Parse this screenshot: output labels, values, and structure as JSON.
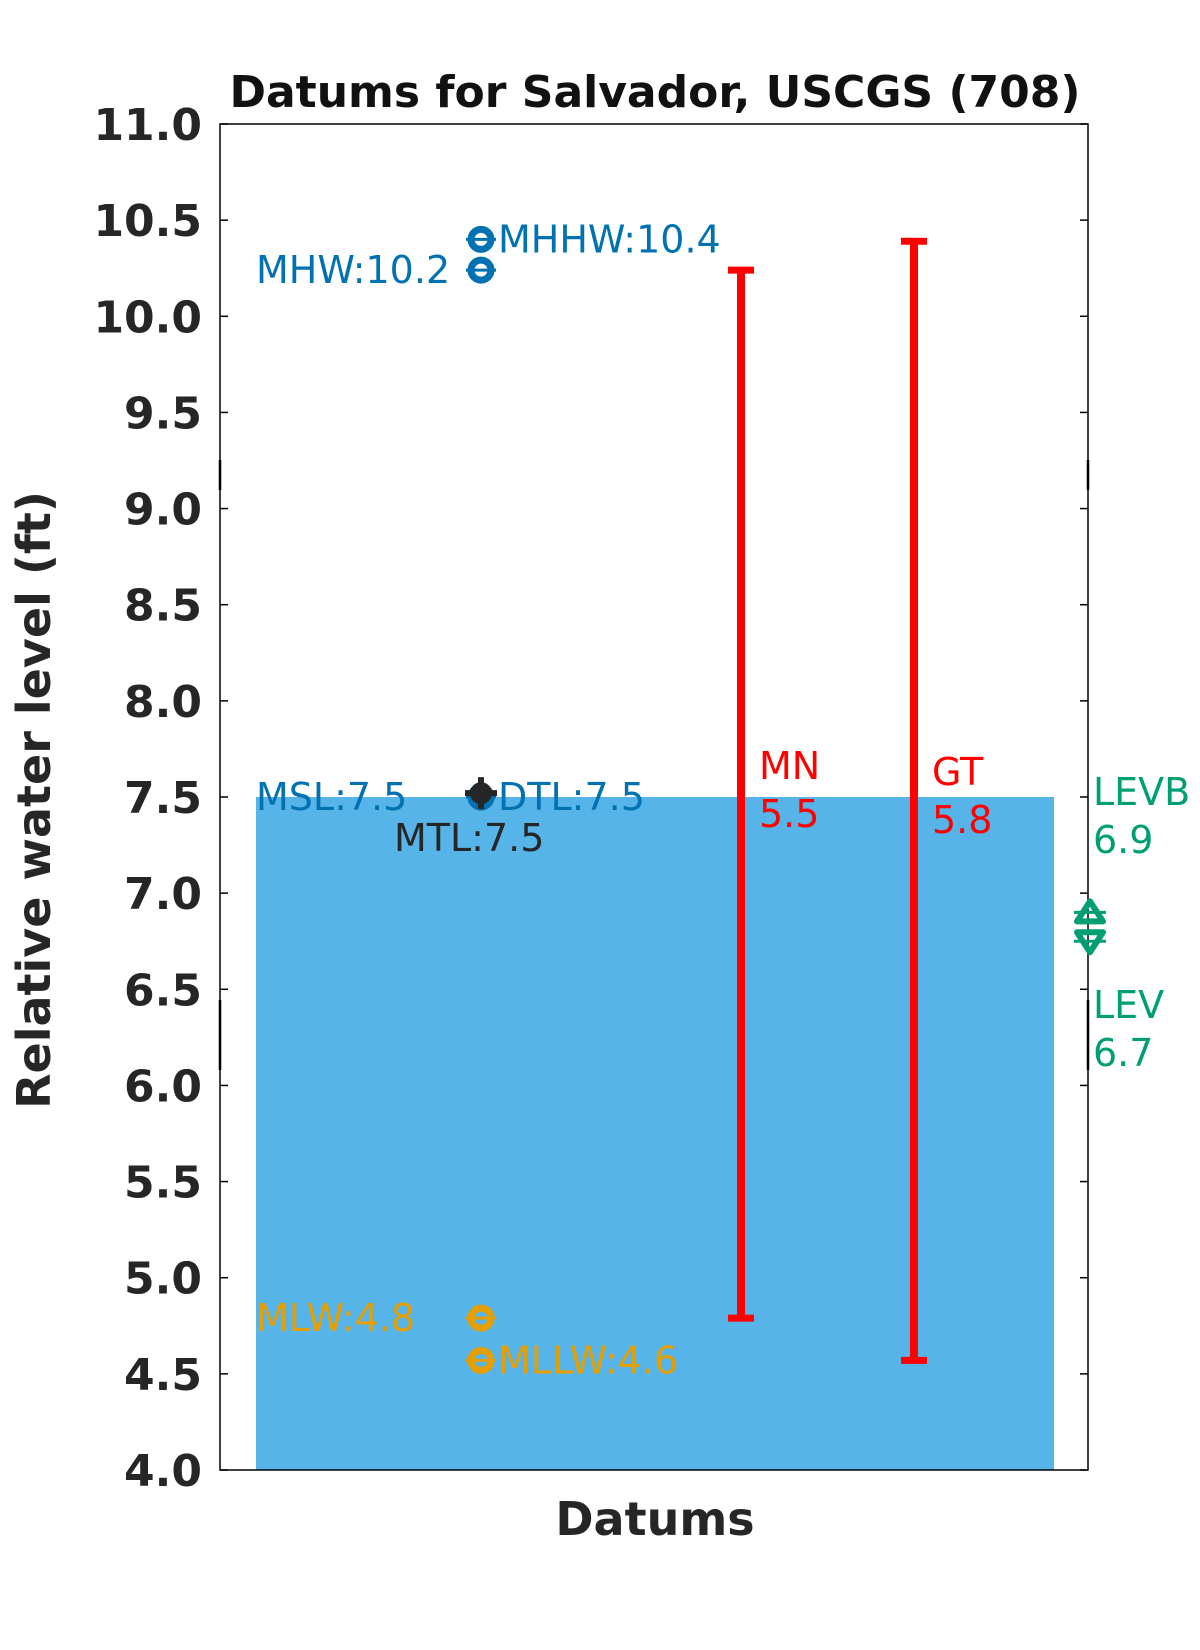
{
  "chart_data": {
    "type": "bar",
    "title": "Datums for Salvador, USCGS (708)",
    "xlabel": "Datums",
    "ylabel": "Relative water level (ft)",
    "ylim": [
      4.0,
      11.0
    ],
    "yticks": [
      "4.0",
      "4.5",
      "5.0",
      "5.5",
      "6.0",
      "6.5",
      "7.0",
      "7.5",
      "8.0",
      "8.5",
      "9.0",
      "9.5",
      "10.0",
      "10.5",
      "11.0"
    ],
    "grid": false,
    "bar": {
      "value": 7.5,
      "color": "#56B4E9"
    },
    "datums": [
      {
        "name": "MHHW",
        "label": "MHHW:10.4",
        "value": 10.4,
        "color": "#0072B2",
        "label_side": "right"
      },
      {
        "name": "MHW",
        "label": "MHW:10.2",
        "value": 10.24,
        "color": "#0072B2",
        "label_side": "left"
      },
      {
        "name": "MSL",
        "label": "MSL:7.5",
        "value": 7.5,
        "color": "#0072B2",
        "label_side": "left"
      },
      {
        "name": "DTL",
        "label": "DTL:7.5",
        "value": 7.5,
        "color": "#0072B2",
        "label_side": "right"
      },
      {
        "name": "MTL",
        "label": "MTL:7.5",
        "value": 7.52,
        "color": "#262626",
        "label_side": "below"
      },
      {
        "name": "MLW",
        "label": "MLW:4.8",
        "value": 4.79,
        "color": "#E69F00",
        "label_side": "left"
      },
      {
        "name": "MLLW",
        "label": "MLLW:4.6",
        "value": 4.57,
        "color": "#E69F00",
        "label_side": "right"
      }
    ],
    "ranges": [
      {
        "name": "MN",
        "label": "MN",
        "value_label": "5.5",
        "low": 4.79,
        "high": 10.24,
        "color": "#FF0000"
      },
      {
        "name": "GT",
        "label": "GT",
        "value_label": "5.8",
        "low": 4.57,
        "high": 10.39,
        "color": "#FF0000"
      }
    ],
    "levels": [
      {
        "name": "LEVB",
        "label": "LEVB",
        "value_label": "6.9",
        "value": 6.9,
        "marker": "triangle-up",
        "color": "#009E73"
      },
      {
        "name": "LEV",
        "label": "LEV",
        "value_label": "6.7",
        "value": 6.75,
        "marker": "triangle-down",
        "color": "#009E73"
      }
    ]
  }
}
